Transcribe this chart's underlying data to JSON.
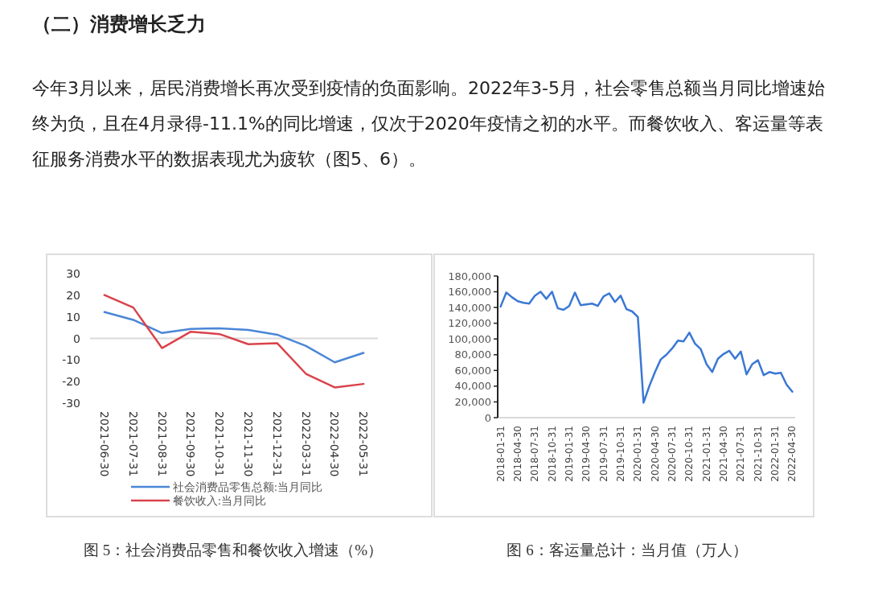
{
  "chart_data": [
    {
      "type": "other",
      "title": "（二）消费增长乏力",
      "annotations": [
        "今年3月以来，居民消费增长再次受到疫情的负面影响。2022年3-5月，社会零售总额当月同比增速始终为负，且在4月录得-11.1%的同比增速，仅次于2020年疫情之初的水平。而餐饮收入、客运量等表征服务消费水平的数据表现尤为疲软（图5、6）。"
      ]
    },
    {
      "type": "line",
      "title": "图 5：社会消费品零售和餐饮收入增速（%）",
      "categories": [
        "2021-06-30",
        "2021-07-31",
        "2021-08-31",
        "2021-09-30",
        "2021-10-31",
        "2021-11-30",
        "2021-12-31",
        "2022-03-31",
        "2022-04-30",
        "2022-05-31"
      ],
      "series": [
        {
          "name": "社会消费品零售总额:当月同比",
          "color": "#4a86d6",
          "values": [
            12.2,
            8.6,
            2.5,
            4.4,
            4.7,
            3.9,
            1.7,
            -3.5,
            -11.1,
            -6.7
          ]
        },
        {
          "name": "餐饮收入:当月同比",
          "color": "#d9434b",
          "values": [
            20.1,
            14.3,
            -4.5,
            3.1,
            2.0,
            -2.7,
            -2.2,
            -16.4,
            -22.7,
            -21.1
          ]
        }
      ],
      "ylim": [
        -30,
        30
      ],
      "yticks": [
        -30,
        -20,
        -10,
        0,
        10,
        20,
        30
      ],
      "legend": "bottom"
    },
    {
      "type": "line",
      "title": "图 6：客运量总计：当月值（万人）",
      "categories": [
        "2018-01-31",
        null,
        null,
        "2018-04-30",
        null,
        null,
        "2018-07-31",
        null,
        null,
        "2018-10-31",
        null,
        null,
        "2019-01-31",
        null,
        null,
        "2019-04-30",
        null,
        null,
        "2019-07-31",
        null,
        null,
        "2019-10-31",
        null,
        null,
        "2020-01-31",
        null,
        null,
        "2020-04-30",
        null,
        null,
        "2020-07-31",
        null,
        null,
        "2020-10-31",
        null,
        null,
        "2021-01-31",
        null,
        null,
        "2021-04-30",
        null,
        null,
        "2021-07-31",
        null,
        null,
        "2021-10-31",
        null,
        null,
        "2022-01-31",
        null,
        null,
        "2022-04-30"
      ],
      "series": [
        {
          "color": "#3a78d4",
          "values": [
            141000,
            159000,
            153000,
            148000,
            146000,
            145000,
            155000,
            160000,
            151000,
            160000,
            139000,
            137000,
            142000,
            159000,
            143000,
            144000,
            145000,
            142000,
            154000,
            158000,
            147000,
            155000,
            138000,
            135000,
            128000,
            19000,
            40000,
            58000,
            74000,
            80000,
            88000,
            98000,
            97000,
            108000,
            94000,
            87000,
            68000,
            58000,
            75000,
            81000,
            85000,
            75000,
            84000,
            55000,
            68000,
            73000,
            54000,
            58000,
            56000,
            57000,
            42000,
            33000
          ]
        }
      ],
      "ylim": [
        0,
        180000
      ],
      "yticks": [
        {
          "value": 0,
          "label": "0"
        },
        {
          "value": 20000,
          "label": "20,000"
        },
        {
          "value": 40000,
          "label": "40,000"
        },
        {
          "value": 60000,
          "label": "60,000"
        },
        {
          "value": 80000,
          "label": "80,000"
        },
        {
          "value": 100000,
          "label": "100,000"
        },
        {
          "value": 120000,
          "label": "120,000"
        },
        {
          "value": 140000,
          "label": "140,000"
        },
        {
          "value": 160000,
          "label": "160,000"
        },
        {
          "value": 180000,
          "label": "180,000"
        }
      ]
    }
  ]
}
